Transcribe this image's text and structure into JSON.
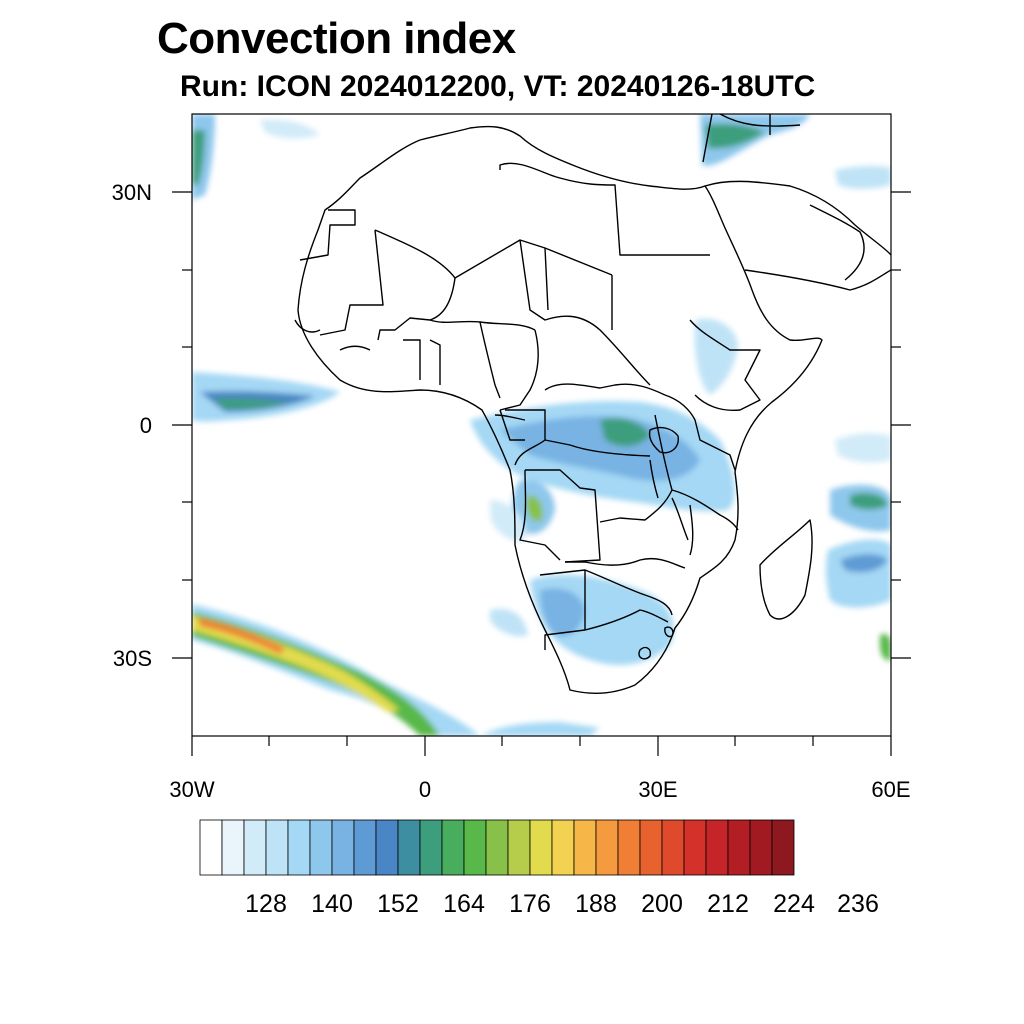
{
  "title": "Convection index",
  "subtitle": "Run: ICON 2024012200,  VT: 20240126-18UTC",
  "map": {
    "region": "Africa",
    "lon_range": [
      -30,
      60
    ],
    "lat_range": [
      -40,
      40
    ],
    "x_ticks": [
      "30W",
      "0",
      "30E",
      "60E"
    ],
    "y_ticks": [
      "30N",
      "0",
      "30S"
    ]
  },
  "colorbar": {
    "labels": [
      "128",
      "140",
      "152",
      "164",
      "176",
      "188",
      "200",
      "212",
      "224",
      "236"
    ],
    "colors": [
      "#ffffff",
      "#e9f5fb",
      "#d2ebf8",
      "#bfe3f6",
      "#a4d8f4",
      "#8ec7ec",
      "#78b3e3",
      "#5e9bd5",
      "#4a86c5",
      "#3e8ea2",
      "#3d9e7e",
      "#48ae5d",
      "#59b84a",
      "#88c14a",
      "#b6cc4b",
      "#e2db4e",
      "#f4d251",
      "#f6b648",
      "#f59a3e",
      "#f07f35",
      "#e8622f",
      "#df4a2c",
      "#d5312b",
      "#c52428",
      "#b31e25",
      "#a11a22",
      "#8e1820"
    ]
  },
  "chart_data": {
    "type": "heatmap",
    "title": "Convection index",
    "subtitle": "Run: ICON 2024012200,  VT: 20240126-18UTC",
    "x_ticks": [
      "30W",
      "0",
      "30E",
      "60E"
    ],
    "y_ticks": [
      "30N",
      "0",
      "30S"
    ],
    "colorbar_ticks": [
      128,
      140,
      152,
      164,
      176,
      188,
      200,
      212,
      224,
      236
    ]
  }
}
